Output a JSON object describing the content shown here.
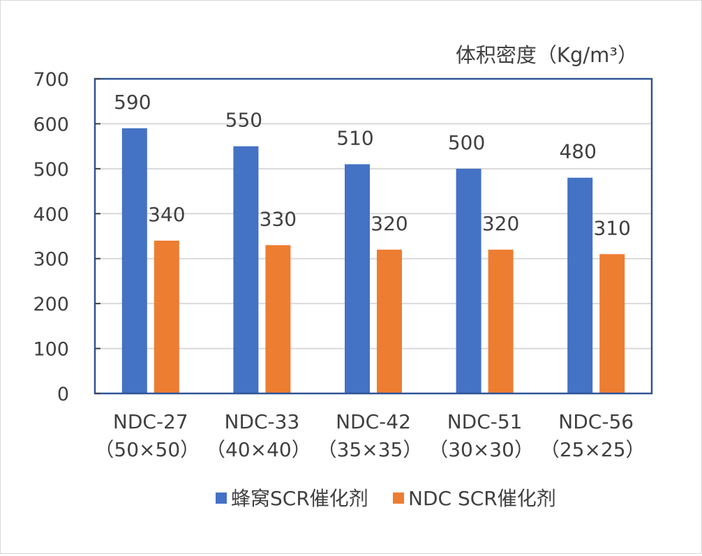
{
  "chart_data": {
    "type": "bar",
    "unit_label": "体积密度（Kg/m³）",
    "categories": [
      {
        "line1": "NDC-27",
        "line2": "（50×50）"
      },
      {
        "line1": "NDC-33",
        "line2": "（40×40）"
      },
      {
        "line1": "NDC-42",
        "line2": "（35×35）"
      },
      {
        "line1": "NDC-51",
        "line2": "（30×30）"
      },
      {
        "line1": "NDC-56",
        "line2": "（25×25）"
      }
    ],
    "series": [
      {
        "name": "蜂窝SCR催化剂",
        "color": "#4472c4",
        "values": [
          590,
          550,
          510,
          500,
          480
        ]
      },
      {
        "name": "NDC SCR催化剂",
        "color": "#ed7d31",
        "values": [
          340,
          330,
          320,
          320,
          310
        ]
      }
    ],
    "ylim": [
      0,
      700
    ],
    "yticks": [
      0,
      100,
      200,
      300,
      400,
      500,
      600,
      700
    ],
    "grid": true,
    "legend_position": "bottom",
    "plot_border_color": "#2f5597"
  }
}
